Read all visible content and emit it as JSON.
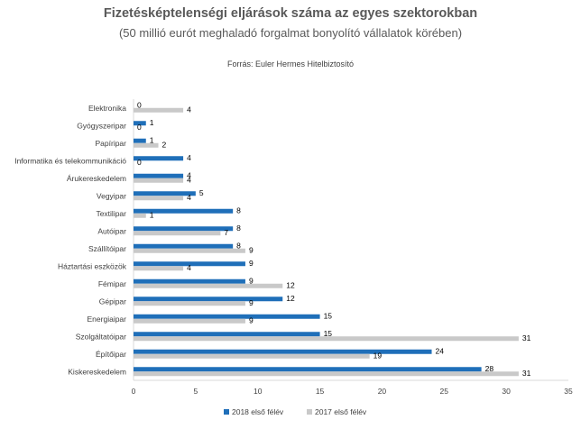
{
  "header": {
    "title": "Fizetésképtelenségi eljárások száma az egyes szektorokban",
    "subtitle": "(50 millió eurót meghaladó forgalmat bonyolító vállalatok körében)",
    "source": "Forrás: Euler Hermes Hitelbiztosító"
  },
  "chart_data": {
    "type": "bar",
    "orientation": "horizontal",
    "title": "Fizetésképtelenségi eljárások száma az egyes szektorokban",
    "subtitle": "(50 millió eurót meghaladó forgalmat bonyolító vállalatok körében)",
    "source": "Forrás: Euler Hermes Hitelbiztosító",
    "categories": [
      "Elektronika",
      "Gyógyszeripar",
      "Papíripar",
      "Informatika és telekommunikáció",
      "Árukereskedelem",
      "Vegyipar",
      "Textilipar",
      "Autóipar",
      "Szállítóipar",
      "Háztartási eszközök",
      "Fémipar",
      "Gépipar",
      "Energiaipar",
      "Szolgáltatóipar",
      "Építőipar",
      "Kiskereskedelem"
    ],
    "series": [
      {
        "name": "2018 első félév",
        "color": "#1f6fb9",
        "values": [
          0,
          1,
          1,
          4,
          4,
          5,
          8,
          8,
          8,
          9,
          9,
          12,
          15,
          15,
          24,
          28
        ]
      },
      {
        "name": "2017 első félév",
        "color": "#c9c9c9",
        "values": [
          4,
          0,
          2,
          0,
          4,
          4,
          1,
          7,
          9,
          4,
          12,
          9,
          9,
          31,
          19,
          31
        ]
      }
    ],
    "xlim": [
      0,
      35
    ],
    "xticks": [
      "0",
      "5",
      "10",
      "15",
      "20",
      "25",
      "30",
      "35"
    ],
    "grid": false,
    "legend": "bottom"
  }
}
